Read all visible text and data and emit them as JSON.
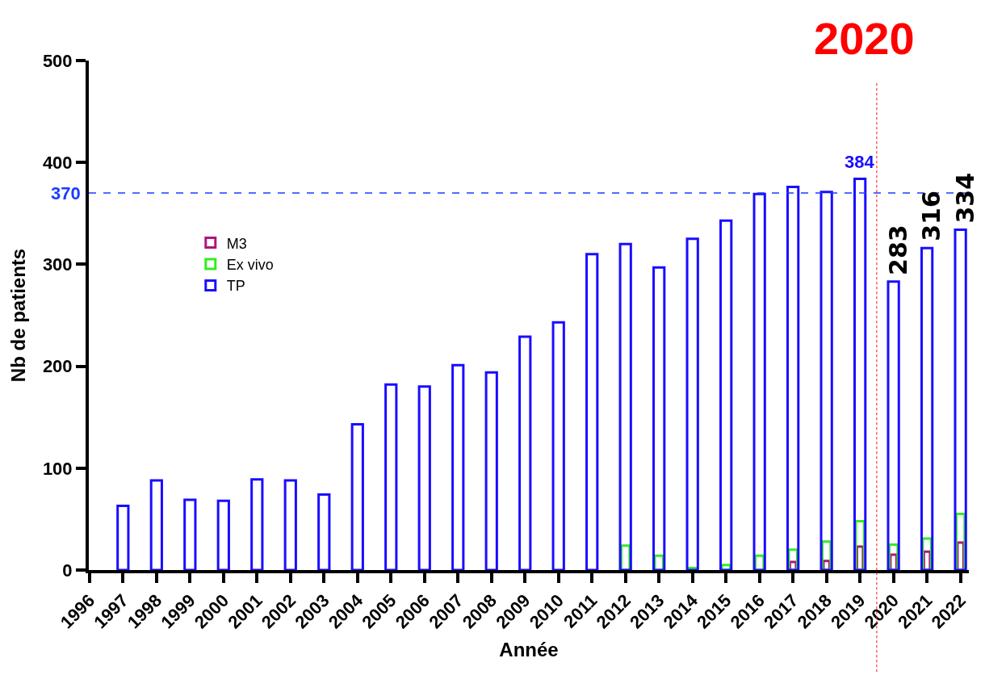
{
  "chart_data": {
    "type": "bar",
    "xlabel": "Année",
    "ylabel": "Nb de patients",
    "x": [
      1997,
      1998,
      1999,
      2000,
      2001,
      2002,
      2003,
      2004,
      2005,
      2006,
      2007,
      2008,
      2009,
      2010,
      2011,
      2012,
      2013,
      2014,
      2015,
      2016,
      2017,
      2018,
      2019,
      2020,
      2021,
      2022
    ],
    "series": [
      {
        "name": "TP",
        "color": "#1a0dff",
        "values": [
          63,
          88,
          69,
          68,
          89,
          88,
          74,
          143,
          182,
          180,
          201,
          194,
          229,
          243,
          310,
          320,
          297,
          325,
          343,
          369,
          376,
          371,
          384,
          283,
          316,
          334
        ],
        "value_labels": [
          null,
          null,
          null,
          null,
          null,
          null,
          null,
          null,
          null,
          null,
          null,
          null,
          null,
          null,
          null,
          null,
          null,
          null,
          null,
          null,
          null,
          null,
          "384",
          "283",
          "316",
          "334"
        ]
      },
      {
        "name": "Ex vivo",
        "color": "#33ee22",
        "values": [
          null,
          null,
          null,
          null,
          null,
          null,
          null,
          null,
          null,
          null,
          null,
          null,
          null,
          null,
          null,
          24,
          14,
          2,
          5,
          14,
          20,
          28,
          48,
          25,
          31,
          55
        ]
      },
      {
        "name": "M3",
        "color": "#b0157a",
        "values": [
          null,
          null,
          null,
          null,
          null,
          null,
          null,
          null,
          null,
          null,
          null,
          null,
          null,
          null,
          null,
          null,
          null,
          null,
          null,
          null,
          8,
          9,
          23,
          15,
          18,
          27
        ]
      }
    ],
    "xlim": [
      1996,
      2022
    ],
    "xticks": [
      1996,
      1997,
      1998,
      1999,
      2000,
      2001,
      2002,
      2003,
      2004,
      2005,
      2006,
      2007,
      2008,
      2009,
      2010,
      2011,
      2012,
      2013,
      2014,
      2015,
      2016,
      2017,
      2018,
      2019,
      2020,
      2021,
      2022
    ],
    "ylim": [
      0,
      500
    ],
    "yticks": [
      0,
      100,
      200,
      300,
      400,
      500
    ],
    "ref_lines": [
      {
        "axis": "y",
        "value": 370,
        "label": "370",
        "color": "#1a3cff",
        "line_style": "dashed"
      },
      {
        "axis": "x",
        "value": 2019.5,
        "label": "2020",
        "color": "#ff0000",
        "line_style": "dotted"
      }
    ],
    "legend": "left"
  }
}
